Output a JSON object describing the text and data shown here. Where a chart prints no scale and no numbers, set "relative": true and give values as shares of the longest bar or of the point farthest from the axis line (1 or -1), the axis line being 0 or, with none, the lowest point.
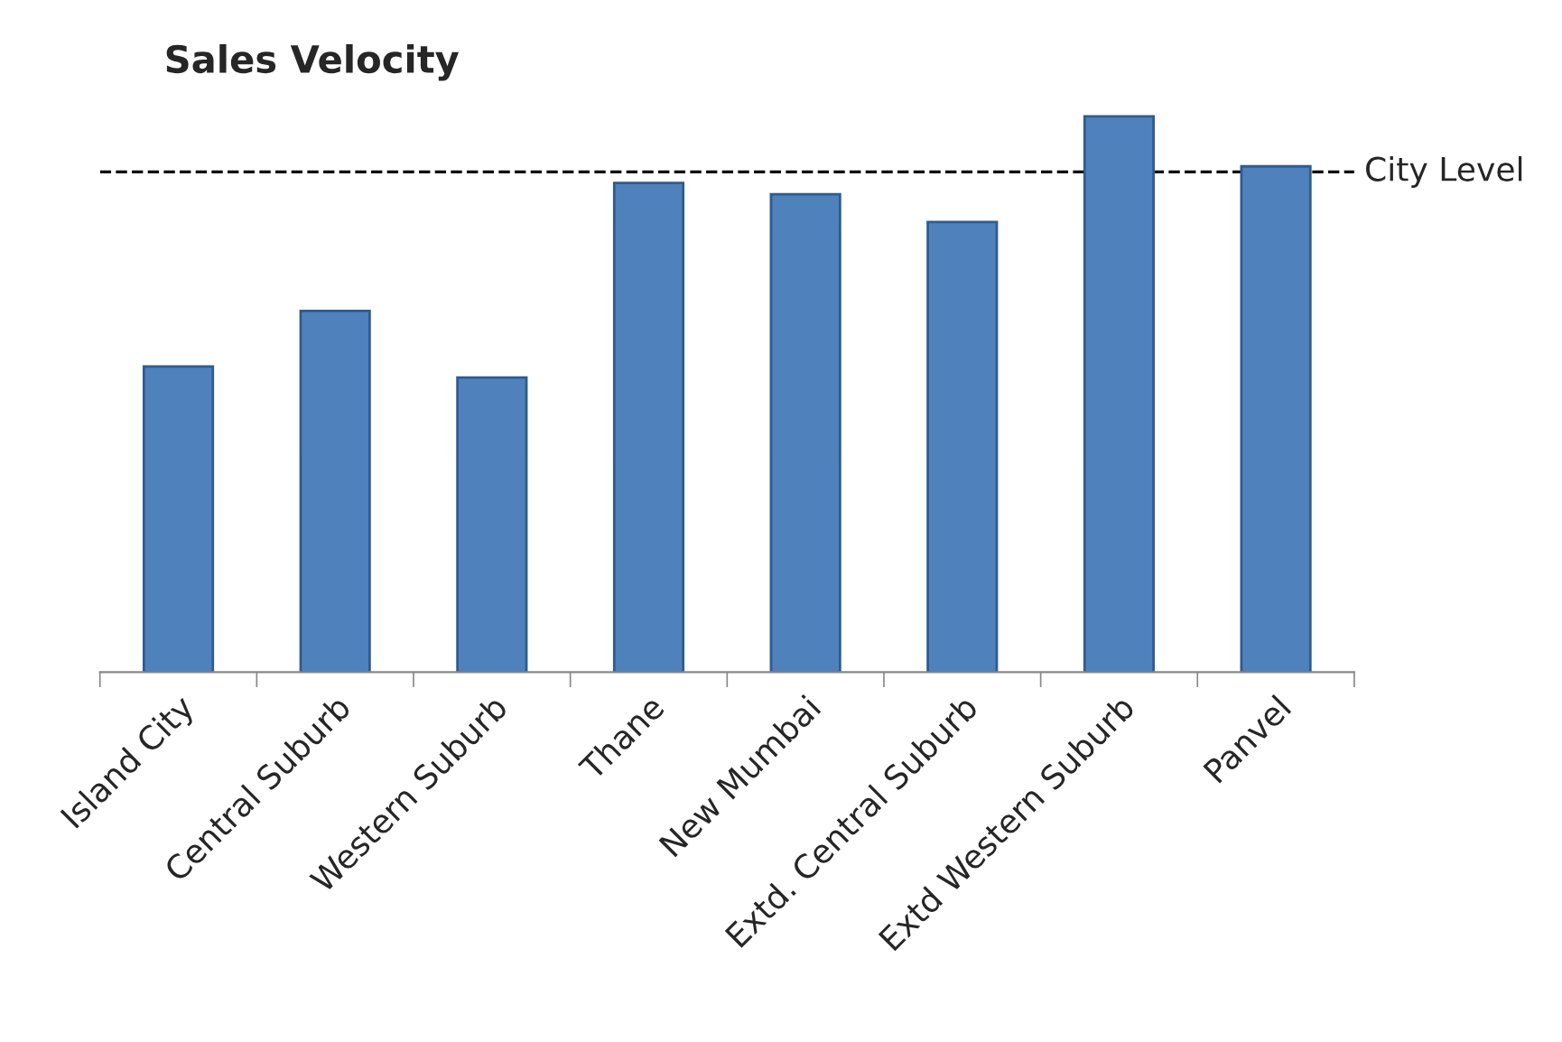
{
  "chart_data": {
    "type": "bar",
    "title": "Sales Velocity",
    "relative": true,
    "categories": [
      "Island City",
      "Central Suburb",
      "Western Suburb",
      "Thane",
      "New Mumbai",
      "Extd. Central Suburb",
      "Extd Western Suburb",
      "Panvel"
    ],
    "values": [
      0.55,
      0.65,
      0.53,
      0.88,
      0.86,
      0.81,
      1,
      0.91
    ],
    "color": "#4f81bd",
    "ref_lines": [
      {
        "axis": "y",
        "value": 0.9,
        "label": "City Level",
        "color": "#000000",
        "line_style": "dashed"
      }
    ],
    "grid": false,
    "legend": false
  }
}
